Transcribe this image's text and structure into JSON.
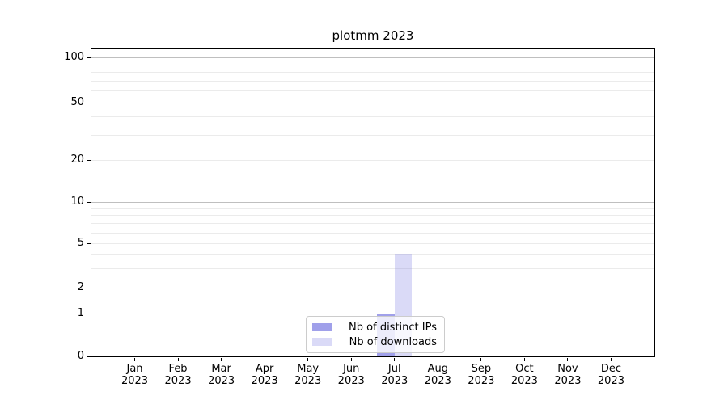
{
  "chart_data": {
    "type": "bar",
    "title": "plotmm 2023",
    "categories": [
      "Jan",
      "Feb",
      "Mar",
      "Apr",
      "May",
      "Jun",
      "Jul",
      "Aug",
      "Sep",
      "Oct",
      "Nov",
      "Dec"
    ],
    "category_year": "2023",
    "series": [
      {
        "name": "Nb of distinct IPs",
        "color": "#6666dd",
        "alpha": 0.62,
        "values": [
          0,
          0,
          0,
          0,
          0,
          0,
          1,
          0,
          0,
          0,
          0,
          0
        ]
      },
      {
        "name": "Nb of downloads",
        "color": "#6666dd",
        "alpha": 0.24,
        "values": [
          0,
          0,
          0,
          0,
          0,
          0,
          4,
          0,
          0,
          0,
          0,
          0
        ]
      }
    ],
    "y_ticks": [
      0,
      1,
      2,
      5,
      10,
      20,
      50,
      100
    ],
    "ylim": [
      0,
      114
    ],
    "y_scale": "log above 1, linear 0-1",
    "xlabel": "",
    "ylabel": "",
    "grid": "horizontal major+minor",
    "legend": {
      "position": "lower center",
      "entries": [
        "Nb of distinct IPs",
        "Nb of downloads"
      ],
      "background": "rgba(255,255,255,0.8)",
      "border_color": "#cccccc"
    }
  }
}
